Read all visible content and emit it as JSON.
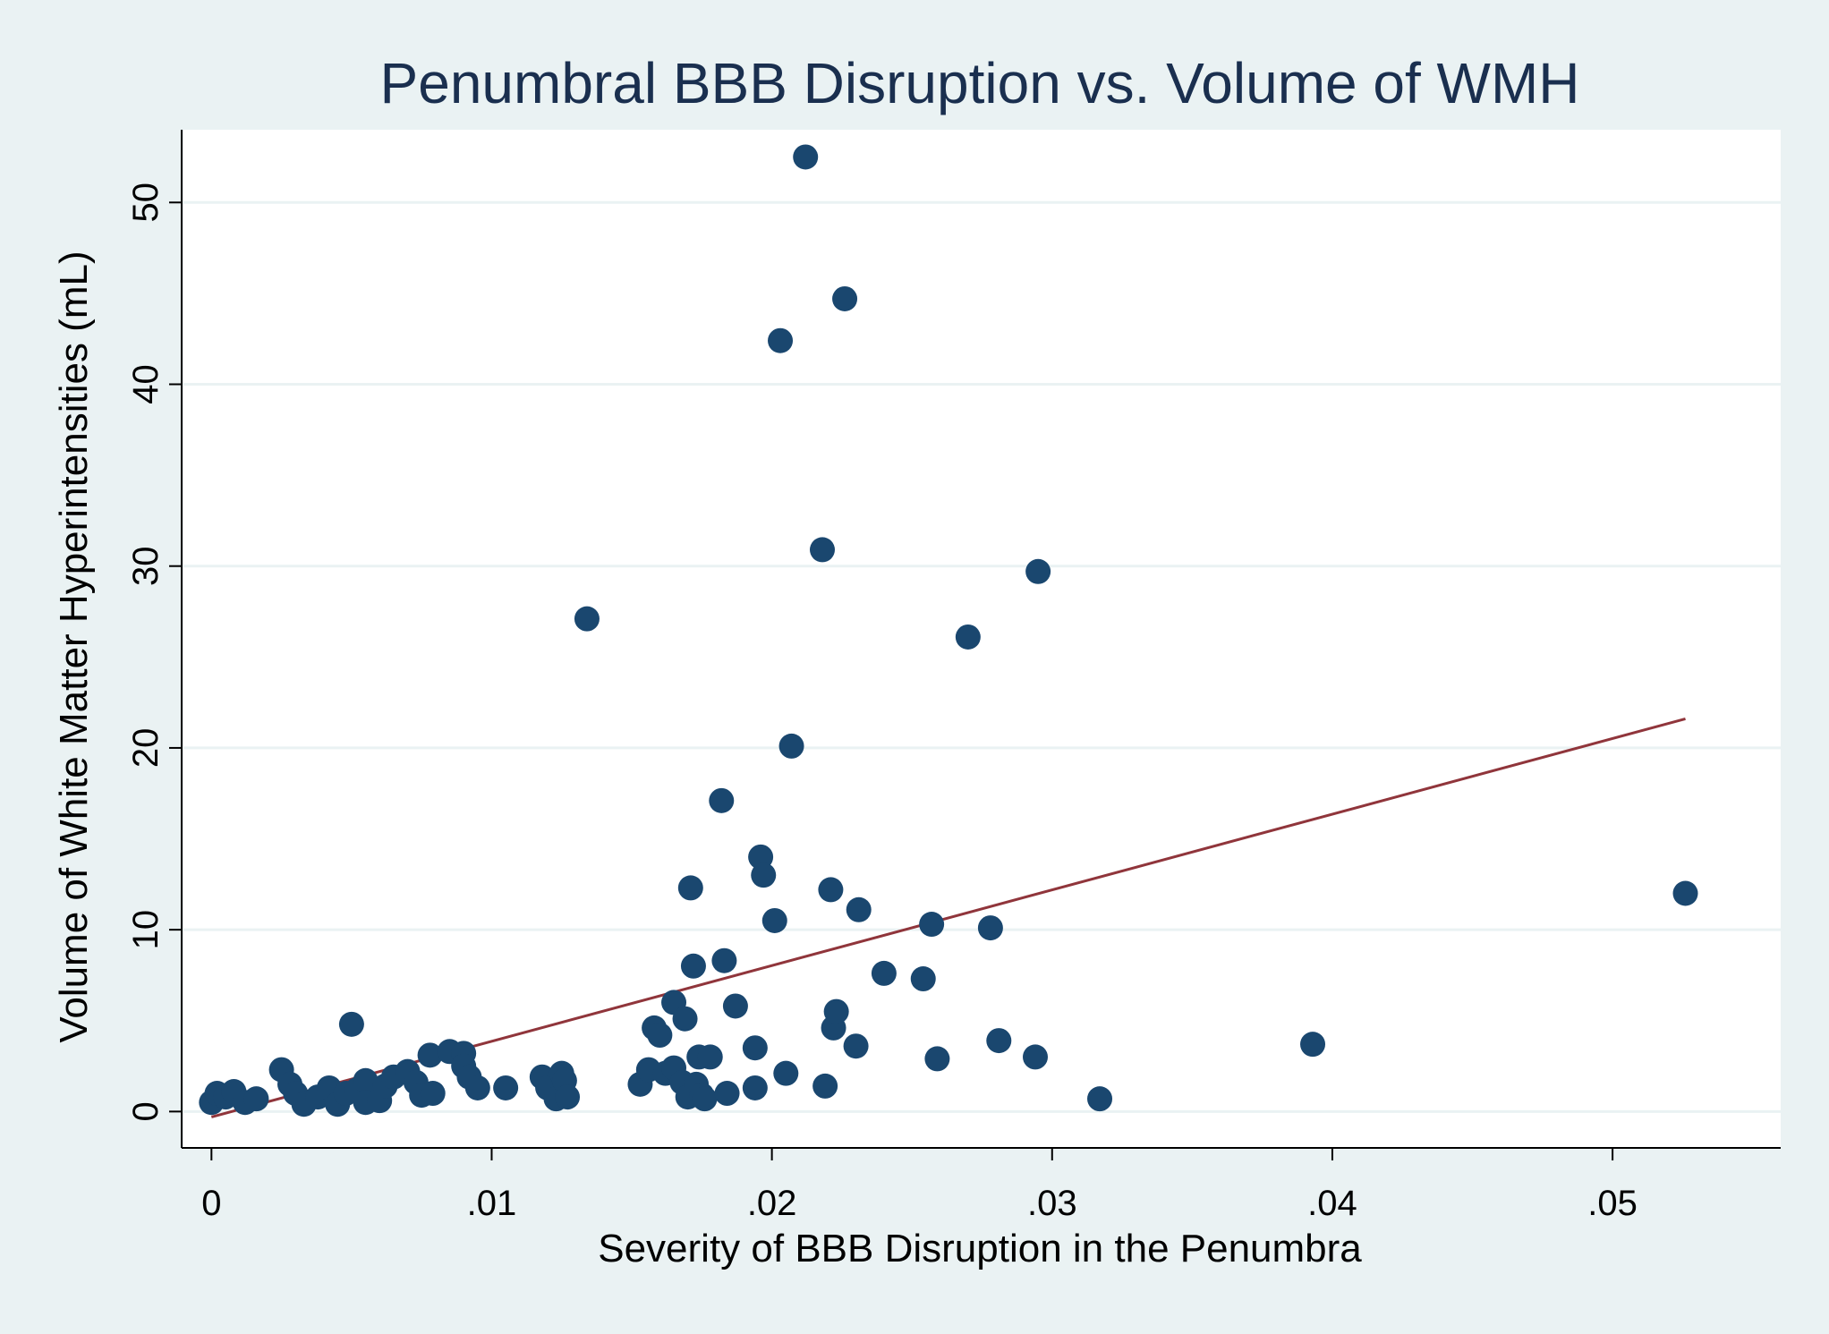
{
  "chart_data": {
    "type": "scatter",
    "title": "Penumbral BBB Disruption vs. Volume of WMH",
    "xlabel": "Severity of BBB Disruption in the Penumbra",
    "ylabel": "Volume of White Matter Hyperintensities (mL)",
    "xlim": [
      -0.001,
      0.056
    ],
    "ylim": [
      -2,
      54
    ],
    "x_ticks": [
      0,
      0.01,
      0.02,
      0.03,
      0.04,
      0.05
    ],
    "x_tick_labels": [
      "0",
      ".01",
      ".02",
      ".03",
      ".04",
      ".05"
    ],
    "y_ticks": [
      0,
      10,
      20,
      30,
      40,
      50
    ],
    "y_tick_labels": [
      "0",
      "10",
      "20",
      "30",
      "40",
      "50"
    ],
    "grid": true,
    "colors": {
      "background": "#eaf2f3",
      "plot_background": "#ffffff",
      "points": "#1a476f",
      "fit_line": "#90353b",
      "text": "#000000",
      "title": "#1a2f4f",
      "grid": "#eaf2f3"
    },
    "series": [
      {
        "name": "Observed",
        "type": "scatter",
        "points": [
          [
            0.0,
            0.5
          ],
          [
            0.0002,
            1.0
          ],
          [
            0.0005,
            0.8
          ],
          [
            0.0008,
            1.1
          ],
          [
            0.0012,
            0.5
          ],
          [
            0.0016,
            0.7
          ],
          [
            0.0025,
            2.3
          ],
          [
            0.0028,
            1.5
          ],
          [
            0.003,
            1.0
          ],
          [
            0.0033,
            0.4
          ],
          [
            0.0038,
            0.8
          ],
          [
            0.0042,
            1.3
          ],
          [
            0.0045,
            0.4
          ],
          [
            0.0048,
            1.0
          ],
          [
            0.005,
            4.8
          ],
          [
            0.0052,
            1.2
          ],
          [
            0.0055,
            1.7
          ],
          [
            0.0055,
            0.5
          ],
          [
            0.006,
            0.6
          ],
          [
            0.0062,
            1.4
          ],
          [
            0.0065,
            1.9
          ],
          [
            0.007,
            2.2
          ],
          [
            0.0073,
            1.6
          ],
          [
            0.0075,
            0.9
          ],
          [
            0.0078,
            3.1
          ],
          [
            0.0079,
            1.0
          ],
          [
            0.0085,
            3.3
          ],
          [
            0.009,
            3.2
          ],
          [
            0.009,
            2.5
          ],
          [
            0.0092,
            1.9
          ],
          [
            0.0095,
            1.3
          ],
          [
            0.0105,
            1.3
          ],
          [
            0.0118,
            1.9
          ],
          [
            0.012,
            1.3
          ],
          [
            0.0123,
            0.7
          ],
          [
            0.0125,
            2.1
          ],
          [
            0.0126,
            1.7
          ],
          [
            0.0127,
            0.8
          ],
          [
            0.0134,
            27.1
          ],
          [
            0.0153,
            1.5
          ],
          [
            0.0156,
            2.3
          ],
          [
            0.0158,
            4.6
          ],
          [
            0.016,
            4.2
          ],
          [
            0.0162,
            2.1
          ],
          [
            0.0165,
            2.4
          ],
          [
            0.0165,
            6.0
          ],
          [
            0.0168,
            1.6
          ],
          [
            0.0169,
            5.1
          ],
          [
            0.017,
            0.8
          ],
          [
            0.0171,
            12.3
          ],
          [
            0.0172,
            8.0
          ],
          [
            0.0173,
            1.5
          ],
          [
            0.0174,
            3.0
          ],
          [
            0.0175,
            0.9
          ],
          [
            0.0176,
            0.7
          ],
          [
            0.0178,
            3.0
          ],
          [
            0.0182,
            17.1
          ],
          [
            0.0183,
            8.3
          ],
          [
            0.0184,
            1.0
          ],
          [
            0.0187,
            5.8
          ],
          [
            0.0194,
            3.5
          ],
          [
            0.0194,
            1.3
          ],
          [
            0.0196,
            14.0
          ],
          [
            0.0197,
            13.0
          ],
          [
            0.0201,
            10.5
          ],
          [
            0.0203,
            42.4
          ],
          [
            0.0205,
            2.1
          ],
          [
            0.0207,
            20.1
          ],
          [
            0.0212,
            52.5
          ],
          [
            0.0218,
            30.9
          ],
          [
            0.0219,
            1.4
          ],
          [
            0.0221,
            12.2
          ],
          [
            0.0222,
            4.6
          ],
          [
            0.0223,
            5.5
          ],
          [
            0.0226,
            44.7
          ],
          [
            0.023,
            3.6
          ],
          [
            0.0231,
            11.1
          ],
          [
            0.024,
            7.6
          ],
          [
            0.0254,
            7.3
          ],
          [
            0.0257,
            10.3
          ],
          [
            0.0259,
            2.9
          ],
          [
            0.027,
            26.1
          ],
          [
            0.0278,
            10.1
          ],
          [
            0.0281,
            3.9
          ],
          [
            0.0294,
            3.0
          ],
          [
            0.0295,
            29.7
          ],
          [
            0.0317,
            0.7
          ],
          [
            0.0393,
            3.7
          ],
          [
            0.0526,
            12.0
          ]
        ]
      },
      {
        "name": "Linear fit",
        "type": "line",
        "points": [
          [
            0.0,
            -0.3
          ],
          [
            0.0526,
            21.6
          ]
        ]
      }
    ]
  }
}
